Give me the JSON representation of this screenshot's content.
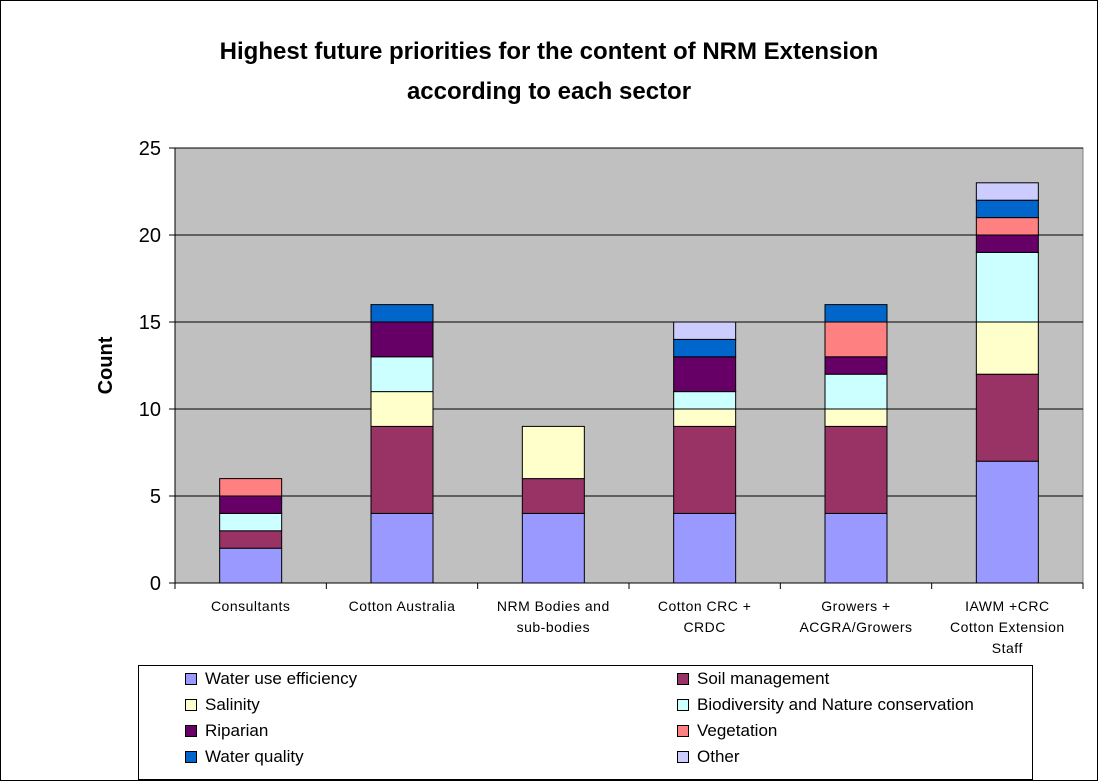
{
  "chart_data": {
    "type": "bar",
    "stacked": true,
    "title_lines": [
      "Highest future priorities for the content of NRM Extension",
      "according to each sector"
    ],
    "ylabel": "Count",
    "xlabel": "",
    "ylim": [
      0,
      25
    ],
    "yticks": [
      0,
      5,
      10,
      15,
      20,
      25
    ],
    "grid": true,
    "legend_position": "bottom",
    "plot_background": "#c0c0c0",
    "categories": [
      [
        "Consultants"
      ],
      [
        "Cotton Australia"
      ],
      [
        "NRM Bodies and",
        "sub-bodies"
      ],
      [
        "Cotton CRC +",
        "CRDC"
      ],
      [
        "Growers +",
        "ACGRA/Growers"
      ],
      [
        "IAWM +CRC",
        "Cotton Extension",
        "Staff"
      ]
    ],
    "series": [
      {
        "name": "Water use efficiency",
        "color": "#9999ff",
        "values": [
          2,
          4,
          4,
          4,
          4,
          7
        ]
      },
      {
        "name": "Soil management",
        "color": "#993366",
        "values": [
          1,
          5,
          2,
          5,
          5,
          5
        ]
      },
      {
        "name": "Salinity",
        "color": "#ffffcc",
        "values": [
          0,
          2,
          3,
          1,
          1,
          3
        ]
      },
      {
        "name": "Biodiversity and Nature conservation",
        "color": "#ccffff",
        "values": [
          1,
          2,
          0,
          1,
          2,
          4
        ]
      },
      {
        "name": "Riparian",
        "color": "#660066",
        "values": [
          1,
          2,
          0,
          2,
          1,
          1
        ]
      },
      {
        "name": "Vegetation",
        "color": "#ff8080",
        "values": [
          1,
          0,
          0,
          0,
          2,
          1
        ]
      },
      {
        "name": "Water quality",
        "color": "#0066cc",
        "values": [
          0,
          1,
          0,
          1,
          1,
          1
        ]
      },
      {
        "name": "Other",
        "color": "#ccccff",
        "values": [
          0,
          0,
          0,
          1,
          0,
          1
        ]
      }
    ]
  }
}
